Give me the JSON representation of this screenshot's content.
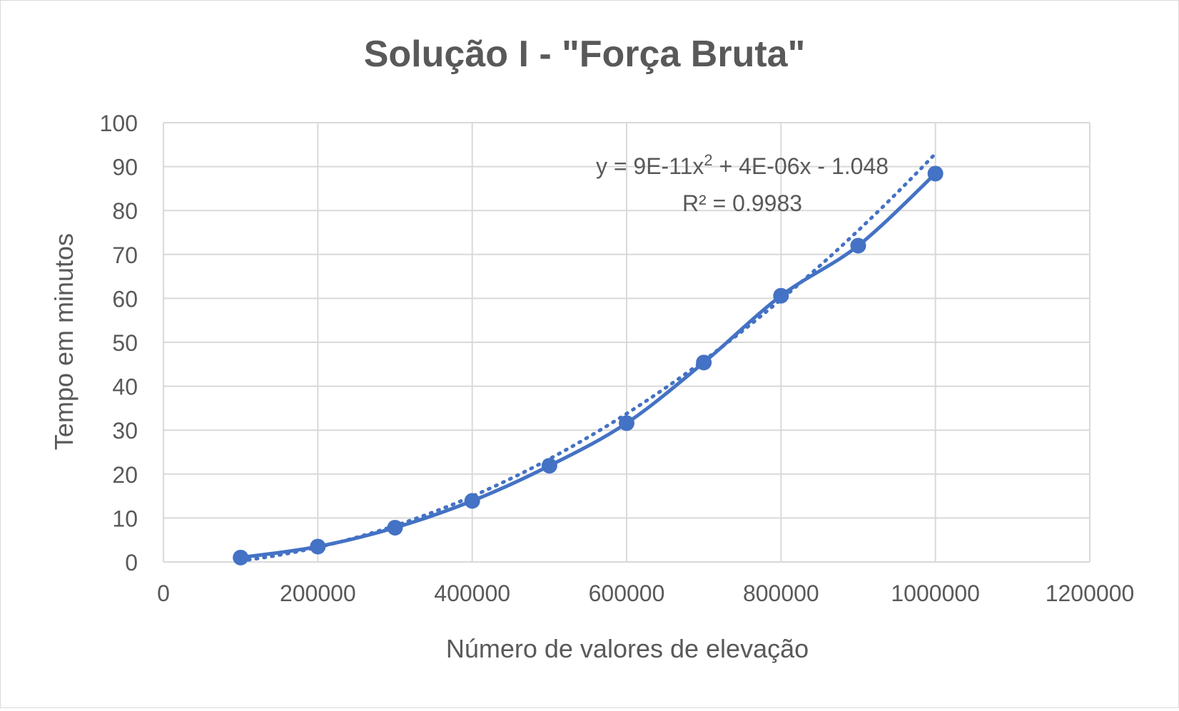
{
  "chart_data": {
    "type": "scatter",
    "title": "Solução I - \"Força Bruta\"",
    "xlabel": "Número de valores de elevação",
    "ylabel": "Tempo em minutos",
    "xlim": [
      0,
      1200000
    ],
    "ylim": [
      0,
      100
    ],
    "xticks": [
      "0",
      "200000",
      "400000",
      "600000",
      "800000",
      "1000000",
      "1200000"
    ],
    "yticks": [
      "0",
      "10",
      "20",
      "30",
      "40",
      "50",
      "60",
      "70",
      "80",
      "90",
      "100"
    ],
    "grid": true,
    "series": [
      {
        "x": [
          100000,
          200000,
          300000,
          400000,
          500000,
          600000,
          700000,
          800000,
          900000,
          1000000
        ],
        "y": [
          1.0,
          3.5,
          7.8,
          13.9,
          21.9,
          31.6,
          45.4,
          60.6,
          72.0,
          88.4
        ],
        "color": "#4472C4",
        "line": "smooth",
        "marker": "circle"
      }
    ],
    "trendline": {
      "type": "polynomial",
      "order": 2,
      "color": "#4472C4",
      "style": "dotted",
      "coefficients": {
        "a": 9e-11,
        "b": 4e-06,
        "c": -1.048
      },
      "equation": "y = 9E-11x² + 4E-06x - 1.048",
      "r_squared": "R² = 0.9983"
    },
    "colors": {
      "text": "#595959",
      "grid": "#d9d9d9",
      "series": "#4472C4"
    }
  }
}
